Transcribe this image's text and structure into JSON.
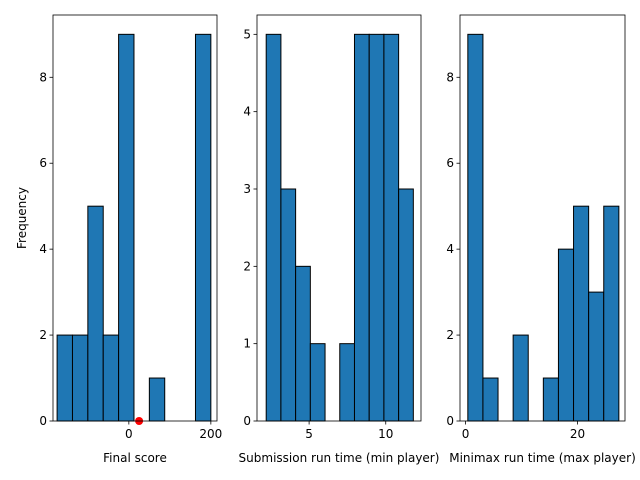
{
  "chart_data": [
    {
      "type": "bar",
      "subtype": "histogram",
      "xlabel": "Final score",
      "ylabel": "Frequency",
      "xlim": [
        -185,
        215
      ],
      "ylim": [
        0,
        9.45
      ],
      "xticks": [
        0,
        200
      ],
      "yticks": [
        0,
        2,
        4,
        6,
        8
      ],
      "bin_edges": [
        -175,
        -137.5,
        -100,
        -62.5,
        -25,
        12.5,
        50,
        87.5,
        125,
        162.5,
        200
      ],
      "values": [
        2,
        2,
        5,
        2,
        9,
        0,
        1,
        0,
        0,
        9
      ],
      "bar_color": "#1f77b4",
      "edge_color": "#000000",
      "markers": [
        {
          "x": 25,
          "y": 0,
          "color": "#ff0000"
        }
      ]
    },
    {
      "type": "bar",
      "subtype": "histogram",
      "xlabel": "Submission run time (min player)",
      "ylabel": "",
      "xlim": [
        1.6,
        12.3
      ],
      "ylim": [
        0,
        5.25
      ],
      "xticks": [
        5,
        10
      ],
      "yticks": [
        0,
        1,
        2,
        3,
        4,
        5
      ],
      "bin_edges": [
        2.2,
        3.16,
        4.12,
        5.08,
        6.04,
        7.0,
        7.96,
        8.92,
        9.88,
        10.84,
        11.8
      ],
      "values": [
        5,
        3,
        2,
        1,
        0,
        1,
        5,
        5,
        5,
        3
      ],
      "bar_color": "#1f77b4",
      "edge_color": "#000000"
    },
    {
      "type": "bar",
      "subtype": "histogram",
      "xlabel": "Minimax run time (max player)",
      "ylabel": "",
      "xlim": [
        -1.0,
        28.5
      ],
      "ylim": [
        0,
        9.45
      ],
      "xticks": [
        0,
        20
      ],
      "yticks": [
        0,
        2,
        4,
        6,
        8
      ],
      "bin_edges": [
        0.4,
        3.1,
        5.8,
        8.5,
        11.2,
        13.9,
        16.6,
        19.3,
        22.0,
        24.7,
        27.4
      ],
      "values": [
        9,
        1,
        0,
        2,
        0,
        1,
        4,
        5,
        3,
        5
      ],
      "bar_color": "#1f77b4",
      "edge_color": "#000000"
    }
  ]
}
